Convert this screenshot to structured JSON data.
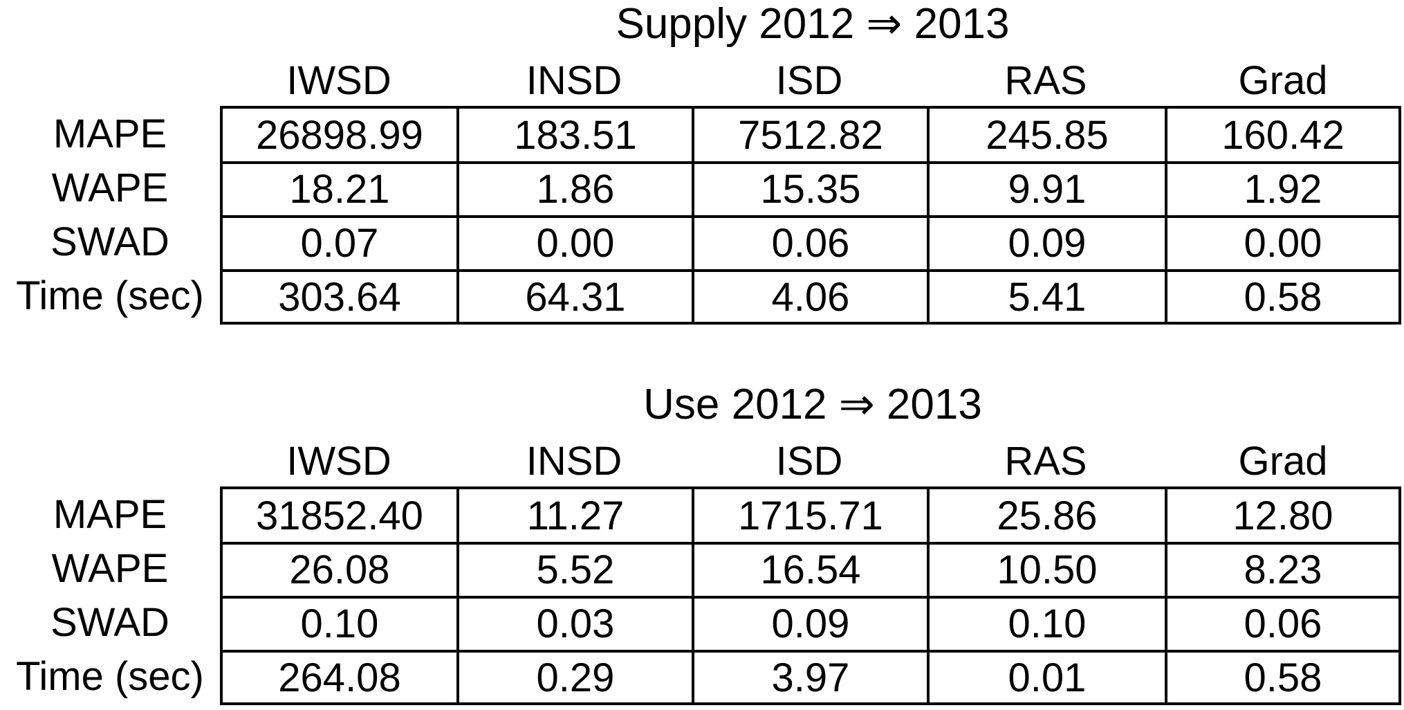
{
  "tables": [
    {
      "title": "Supply 2012 ⇒ 2013",
      "columns": [
        "IWSD",
        "INSD",
        "ISD",
        "RAS",
        "Grad"
      ],
      "rows": [
        {
          "label": "MAPE",
          "values": [
            "26898.99",
            "183.51",
            "7512.82",
            "245.85",
            "160.42"
          ]
        },
        {
          "label": "WAPE",
          "values": [
            "18.21",
            "1.86",
            "15.35",
            "9.91",
            "1.92"
          ]
        },
        {
          "label": "SWAD",
          "values": [
            "0.07",
            "0.00",
            "0.06",
            "0.09",
            "0.00"
          ]
        },
        {
          "label": "Time (sec)",
          "values": [
            "303.64",
            "64.31",
            "4.06",
            "5.41",
            "0.58"
          ]
        }
      ]
    },
    {
      "title": "Use 2012 ⇒ 2013",
      "columns": [
        "IWSD",
        "INSD",
        "ISD",
        "RAS",
        "Grad"
      ],
      "rows": [
        {
          "label": "MAPE",
          "values": [
            "31852.40",
            "11.27",
            "1715.71",
            "25.86",
            "12.80"
          ]
        },
        {
          "label": "WAPE",
          "values": [
            "26.08",
            "5.52",
            "16.54",
            "10.50",
            "8.23"
          ]
        },
        {
          "label": "SWAD",
          "values": [
            "0.10",
            "0.03",
            "0.09",
            "0.10",
            "0.06"
          ]
        },
        {
          "label": "Time (sec)",
          "values": [
            "264.08",
            "0.29",
            "3.97",
            "0.01",
            "0.58"
          ]
        }
      ]
    }
  ]
}
